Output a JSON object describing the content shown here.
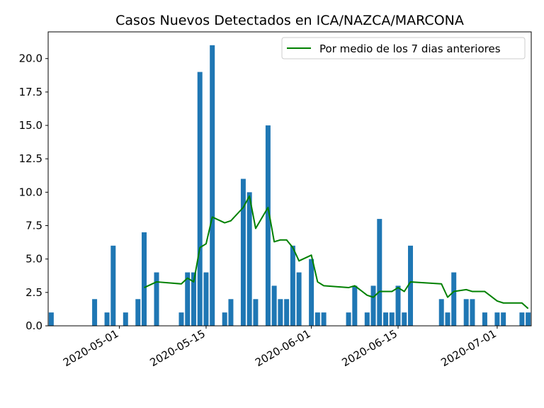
{
  "chart_data": {
    "type": "bar",
    "title": "Casos Nuevos Detectados en ICA/NAZCA/MARCONA",
    "xlabel": "",
    "ylabel": "",
    "xlim": [
      "2020-04-20",
      "2020-07-06"
    ],
    "ylim": [
      0,
      22
    ],
    "yticks": [
      0.0,
      2.5,
      5.0,
      7.5,
      10.0,
      12.5,
      15.0,
      17.5,
      20.0
    ],
    "ytick_labels": [
      "0.0",
      "2.5",
      "5.0",
      "7.5",
      "10.0",
      "12.5",
      "15.0",
      "17.5",
      "20.0"
    ],
    "xticks": [
      "2020-05-01",
      "2020-05-15",
      "2020-06-01",
      "2020-06-15",
      "2020-07-01"
    ],
    "grid": false,
    "legend_position": "top-right",
    "bar_color": "#1f77b4",
    "line_color": "#008000",
    "bars": {
      "name": "",
      "x": [
        "2020-04-20",
        "2020-04-27",
        "2020-04-29",
        "2020-04-30",
        "2020-05-02",
        "2020-05-04",
        "2020-05-05",
        "2020-05-07",
        "2020-05-11",
        "2020-05-12",
        "2020-05-13",
        "2020-05-14",
        "2020-05-15",
        "2020-05-16",
        "2020-05-18",
        "2020-05-19",
        "2020-05-21",
        "2020-05-22",
        "2020-05-23",
        "2020-05-25",
        "2020-05-26",
        "2020-05-27",
        "2020-05-28",
        "2020-05-29",
        "2020-05-30",
        "2020-06-01",
        "2020-06-02",
        "2020-06-03",
        "2020-06-07",
        "2020-06-08",
        "2020-06-10",
        "2020-06-11",
        "2020-06-12",
        "2020-06-13",
        "2020-06-14",
        "2020-06-15",
        "2020-06-16",
        "2020-06-17",
        "2020-06-22",
        "2020-06-23",
        "2020-06-24",
        "2020-06-26",
        "2020-06-27",
        "2020-06-29",
        "2020-07-01",
        "2020-07-02",
        "2020-07-05",
        "2020-07-06"
      ],
      "values": [
        1,
        2,
        1,
        6,
        1,
        2,
        7,
        4,
        1,
        4,
        4,
        19,
        4,
        21,
        1,
        2,
        11,
        10,
        2,
        15,
        3,
        2,
        2,
        6,
        4,
        5,
        1,
        1,
        1,
        3,
        1,
        3,
        8,
        1,
        1,
        3,
        1,
        6,
        2,
        1,
        4,
        2,
        2,
        1,
        1,
        1,
        1,
        1
      ]
    },
    "line": {
      "name": "Por medio de los 7 dias anteriores",
      "x": [
        "2020-05-05",
        "2020-05-07",
        "2020-05-11",
        "2020-05-12",
        "2020-05-13",
        "2020-05-14",
        "2020-05-15",
        "2020-05-16",
        "2020-05-18",
        "2020-05-19",
        "2020-05-21",
        "2020-05-22",
        "2020-05-23",
        "2020-05-25",
        "2020-05-26",
        "2020-05-27",
        "2020-05-28",
        "2020-05-29",
        "2020-05-30",
        "2020-06-01",
        "2020-06-02",
        "2020-06-03",
        "2020-06-07",
        "2020-06-08",
        "2020-06-10",
        "2020-06-11",
        "2020-06-12",
        "2020-06-13",
        "2020-06-14",
        "2020-06-15",
        "2020-06-16",
        "2020-06-17",
        "2020-06-22",
        "2020-06-23",
        "2020-06-24",
        "2020-06-26",
        "2020-06-27",
        "2020-06-29",
        "2020-07-01",
        "2020-07-02",
        "2020-07-05",
        "2020-07-06"
      ],
      "values": [
        2.86,
        3.29,
        3.14,
        3.57,
        3.29,
        5.86,
        6.14,
        8.14,
        7.71,
        7.86,
        8.86,
        9.71,
        7.29,
        8.86,
        6.29,
        6.43,
        6.43,
        5.86,
        4.86,
        5.29,
        3.29,
        3.0,
        2.86,
        3.0,
        2.29,
        2.14,
        2.57,
        2.57,
        2.57,
        2.86,
        2.57,
        3.29,
        3.14,
        2.14,
        2.57,
        2.71,
        2.57,
        2.57,
        1.86,
        1.71,
        1.71,
        1.29
      ]
    }
  }
}
